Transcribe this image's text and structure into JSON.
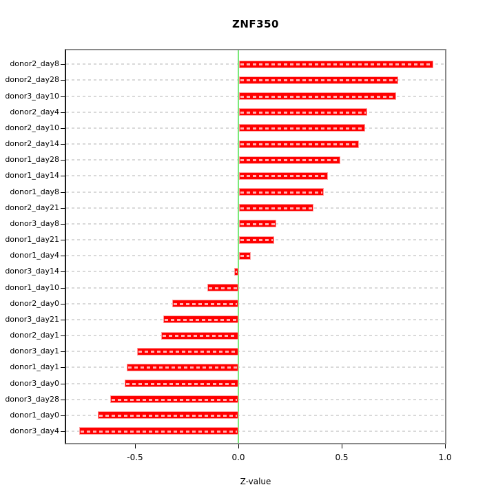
{
  "title": "ZNF350",
  "axes": {
    "x_label": "Z-value",
    "x_ticks": [
      {
        "label": "-0.5",
        "value": -0.5
      },
      {
        "label": "0.0",
        "value": 0.0
      },
      {
        "label": "0.5",
        "value": 0.5
      },
      {
        "label": "1.0",
        "value": 1.0
      }
    ]
  },
  "colors": {
    "bar": "#ff0000",
    "bar_edge": "#ff9d9d",
    "zero_line": "#79e879",
    "grid": "#d9d9d9",
    "box_border": "#8a8a8a",
    "axis": "#000000"
  },
  "chart_data": {
    "type": "bar",
    "orientation": "horizontal",
    "title": "ZNF350",
    "xlabel": "Z-value",
    "ylabel": "",
    "xlim": [
      -0.84,
      1.01
    ],
    "grid": "horizontal-dashed",
    "legend": "none",
    "zero_line": 0,
    "categories": [
      "donor2_day8",
      "donor2_day28",
      "donor3_day10",
      "donor2_day4",
      "donor2_day10",
      "donor2_day14",
      "donor1_day28",
      "donor1_day14",
      "donor1_day8",
      "donor2_day21",
      "donor3_day8",
      "donor1_day21",
      "donor1_day4",
      "donor3_day14",
      "donor1_day10",
      "donor2_day0",
      "donor3_day21",
      "donor2_day1",
      "donor3_day1",
      "donor1_day1",
      "donor3_day0",
      "donor3_day28",
      "donor1_day0",
      "donor3_day4"
    ],
    "values": [
      0.94,
      0.77,
      0.76,
      0.62,
      0.61,
      0.58,
      0.49,
      0.43,
      0.41,
      0.36,
      0.18,
      0.17,
      0.055,
      -0.02,
      -0.15,
      -0.32,
      -0.365,
      -0.375,
      -0.49,
      -0.54,
      -0.55,
      -0.62,
      -0.68,
      -0.77
    ]
  }
}
